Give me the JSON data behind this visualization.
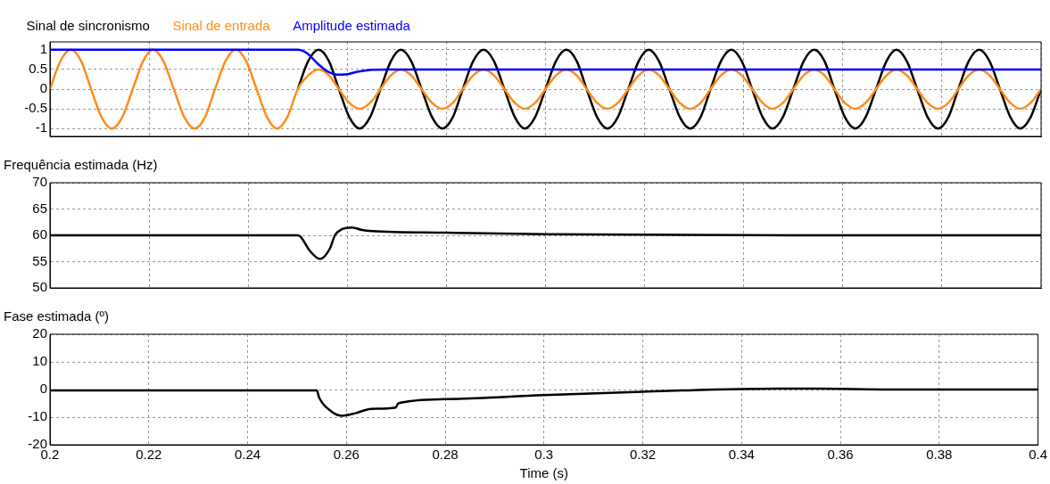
{
  "chart_data": [
    {
      "type": "line",
      "legend": "top left",
      "grid": true,
      "tick_labels": "y",
      "x": [
        0.2,
        0.2021,
        0.2042,
        0.2063,
        0.2083,
        0.2104,
        0.2125,
        0.2146,
        0.2167,
        0.2188,
        0.2208,
        0.2229,
        0.225,
        0.2271,
        0.2292,
        0.2313,
        0.2333,
        0.2354,
        0.2375,
        0.2396,
        0.2417,
        0.2438,
        0.2458,
        0.2479,
        0.25,
        0.2521,
        0.2542,
        0.2563,
        0.2583,
        0.2604,
        0.2625,
        0.2646,
        0.2667,
        0.2688,
        0.2708,
        0.2729,
        0.275,
        0.2771,
        0.2792,
        0.2813,
        0.2833,
        0.2854,
        0.2875,
        0.2896,
        0.2917,
        0.2938,
        0.2958,
        0.2979,
        0.3,
        0.3021,
        0.3042,
        0.3063,
        0.3083,
        0.3104,
        0.3125,
        0.3146,
        0.3167,
        0.3188,
        0.3208,
        0.3229,
        0.325,
        0.3271,
        0.3292,
        0.3313,
        0.3333,
        0.3354,
        0.3375,
        0.3396,
        0.3417,
        0.3438,
        0.3458,
        0.3479,
        0.35,
        0.3521,
        0.3542,
        0.3563,
        0.3583,
        0.3604,
        0.3625,
        0.3646,
        0.3667,
        0.3688,
        0.3708,
        0.3729,
        0.375,
        0.3771,
        0.3792,
        0.3813,
        0.3833,
        0.3854,
        0.3875,
        0.3896,
        0.3917,
        0.3938,
        0.3958,
        0.3979,
        0.4
      ],
      "series": [
        {
          "name": "Sinal de sincronismo",
          "color": "#000000",
          "values": [
            null,
            null,
            null,
            null,
            null,
            null,
            null,
            null,
            null,
            null,
            null,
            null,
            null,
            null,
            null,
            null,
            null,
            null,
            null,
            null,
            null,
            null,
            null,
            null,
            0,
            0.71,
            1,
            0.71,
            0,
            -0.71,
            -1,
            -0.71,
            0,
            0.71,
            1,
            0.71,
            0,
            -0.71,
            -1,
            -0.71,
            0,
            0.71,
            1,
            0.71,
            0,
            -0.71,
            -1,
            -0.71,
            0,
            0.71,
            1,
            0.71,
            0,
            -0.71,
            -1,
            -0.71,
            0,
            0.71,
            1,
            0.71,
            0,
            -0.71,
            -1,
            -0.71,
            0,
            0.71,
            1,
            0.71,
            0,
            -0.71,
            -1,
            -0.71,
            0,
            0.71,
            1,
            0.71,
            0,
            -0.71,
            -1,
            -0.71,
            0,
            0.71,
            1,
            0.71,
            0,
            -0.71,
            -1,
            -0.71,
            0,
            0.71,
            1,
            0.71,
            0,
            -0.71,
            -1,
            -0.71,
            0
          ]
        },
        {
          "name": "Sinal de entrada",
          "color": "#ff8c1a",
          "values": [
            0,
            0.71,
            1,
            0.71,
            0,
            -0.71,
            -1,
            -0.71,
            0,
            0.71,
            1,
            0.71,
            0,
            -0.71,
            -1,
            -0.71,
            0,
            0.71,
            1,
            0.71,
            0,
            -0.71,
            -1,
            -0.71,
            0,
            0.35,
            0.5,
            0.35,
            0,
            -0.35,
            -0.5,
            -0.35,
            0,
            0.35,
            0.5,
            0.35,
            0,
            -0.35,
            -0.5,
            -0.35,
            0,
            0.35,
            0.5,
            0.35,
            0,
            -0.35,
            -0.5,
            -0.35,
            0,
            0.35,
            0.5,
            0.35,
            0,
            -0.35,
            -0.5,
            -0.35,
            0,
            0.35,
            0.5,
            0.35,
            0,
            -0.35,
            -0.5,
            -0.35,
            0,
            0.35,
            0.5,
            0.35,
            0,
            -0.35,
            -0.5,
            -0.35,
            0,
            0.35,
            0.5,
            0.35,
            0,
            -0.35,
            -0.5,
            -0.35,
            0,
            0.35,
            0.5,
            0.35,
            0,
            -0.35,
            -0.5,
            -0.35,
            0,
            0.35,
            0.5,
            0.35,
            0,
            -0.35,
            -0.5,
            -0.35,
            0
          ]
        },
        {
          "name": "Amplitude estimada",
          "color": "#0000ff",
          "x": [
            0.2,
            0.25,
            0.252,
            0.254,
            0.256,
            0.258,
            0.26,
            0.262,
            0.265,
            0.268,
            0.4
          ],
          "values": [
            1,
            1,
            0.9,
            0.65,
            0.45,
            0.37,
            0.38,
            0.44,
            0.49,
            0.5,
            0.5
          ]
        }
      ],
      "xlim": [
        0.2,
        0.4
      ],
      "xticks": [
        0.2,
        0.22,
        0.24,
        0.26,
        0.28,
        0.3,
        0.32,
        0.34,
        0.36,
        0.38,
        0.4
      ],
      "ylim": [
        -1.2,
        1.2
      ],
      "yticks": [
        -1,
        -0.5,
        0,
        0.5,
        1
      ]
    },
    {
      "type": "line",
      "title": "Frequência estimada (Hz)",
      "grid": true,
      "tick_labels": "y",
      "series": [
        {
          "color": "#000000",
          "x": [
            0.2,
            0.25,
            0.2505,
            0.2525,
            0.2545,
            0.2565,
            0.2575,
            0.259,
            0.261,
            0.263,
            0.265,
            0.28,
            0.3,
            0.35,
            0.4
          ],
          "values": [
            60,
            60,
            59.8,
            57,
            55.5,
            57.5,
            60,
            61.2,
            61.5,
            61,
            60.8,
            60.5,
            60.2,
            60,
            60
          ]
        }
      ],
      "xlim": [
        0.2,
        0.4
      ],
      "xticks": [
        0.2,
        0.22,
        0.24,
        0.26,
        0.28,
        0.3,
        0.32,
        0.34,
        0.36,
        0.38,
        0.4
      ],
      "ylim": [
        50,
        70
      ],
      "yticks": [
        50,
        55,
        60,
        65,
        70
      ]
    },
    {
      "type": "line",
      "title": "Fase estimada (º)",
      "xlabel": "Time (s)",
      "grid": true,
      "series": [
        {
          "color": "#000000",
          "x": [
            0.2,
            0.254,
            0.2545,
            0.257,
            0.259,
            0.262,
            0.265,
            0.27,
            0.2705,
            0.28,
            0.3,
            0.32,
            0.34,
            0.355,
            0.37,
            0.4
          ],
          "values": [
            -0.3,
            -0.3,
            -3,
            -8,
            -9.5,
            -8.5,
            -7,
            -6.5,
            -5,
            -3.5,
            -2,
            -0.8,
            0.2,
            0.3,
            0,
            0
          ]
        }
      ],
      "xlim": [
        0.2,
        0.4
      ],
      "xticks": [
        0.2,
        0.22,
        0.24,
        0.26,
        0.28,
        0.3,
        0.32,
        0.34,
        0.36,
        0.38,
        0.4
      ],
      "ylim": [
        -20,
        20
      ],
      "yticks": [
        -20,
        -10,
        0,
        10,
        20
      ]
    }
  ]
}
